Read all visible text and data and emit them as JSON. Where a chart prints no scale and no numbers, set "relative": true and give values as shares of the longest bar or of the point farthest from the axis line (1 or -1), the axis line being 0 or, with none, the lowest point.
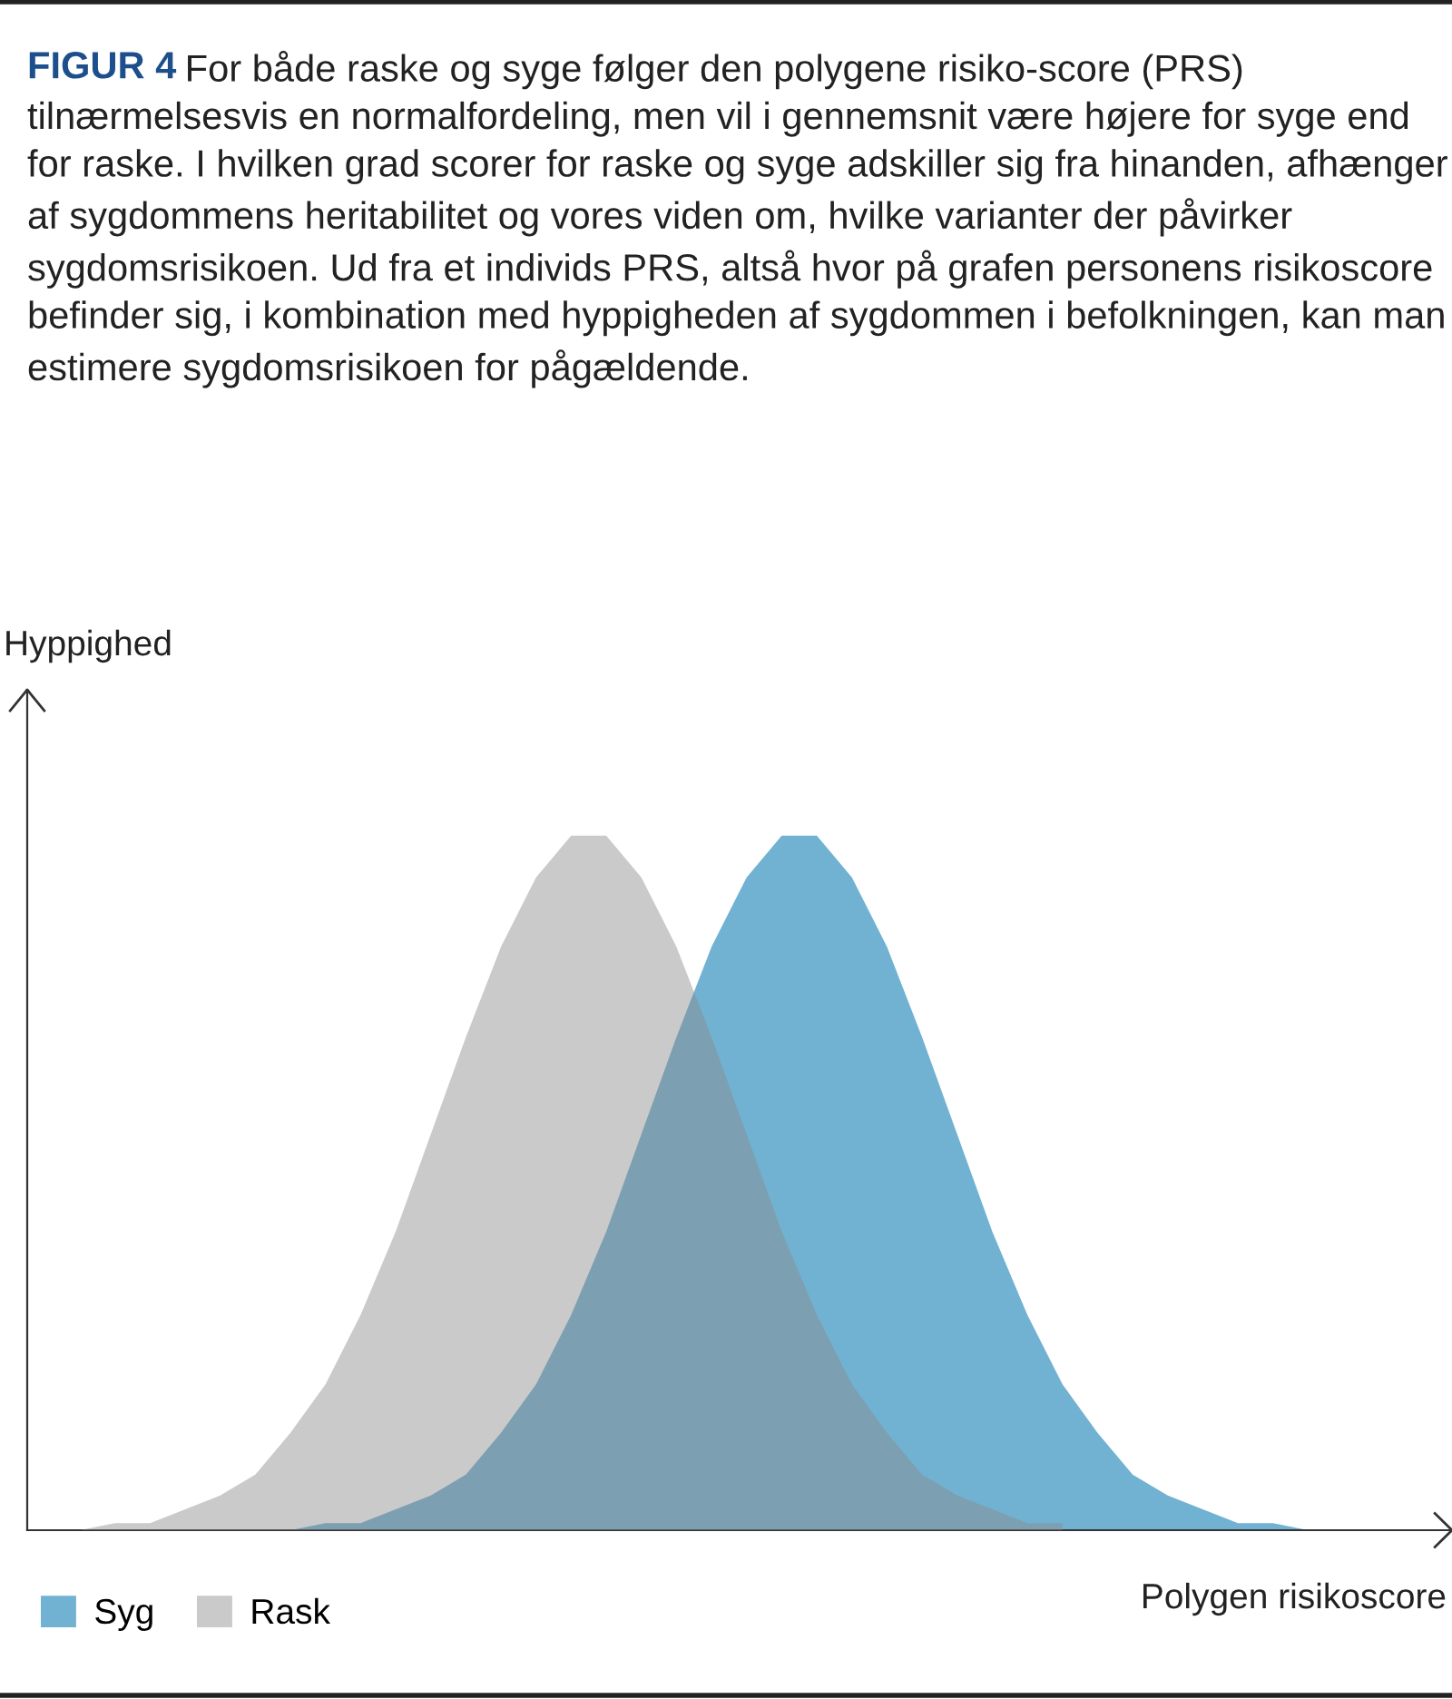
{
  "chart_data": {
    "type": "area",
    "relative": true,
    "title": "FIGUR 4",
    "subtitle": "For både raske og syge følger den polygene risiko-score (PRS) tilnærmelsesvis en normalfordeling, men vil i gennemsnit være højere for syge end for raske. I hvilken grad scorer for raske og syge adskiller sig fra hinanden, afhænger af sygdommens heritabilitet og vores viden om, hvilke varianter der påvirker sygdomsrisikoen. Ud fra et individs PRS, altså hvor på grafen personens risikoscore befinder sig, i kombination med hyppigheden af sygdommen i befolkningen, kan man estimere sygdomsrisikoen for pågældende.",
    "xlabel": "Polygen risikoscore",
    "ylabel": "Hyppighed",
    "categories": [
      null,
      null,
      null,
      null,
      null,
      null,
      null,
      null,
      null,
      null,
      null,
      null,
      null,
      null,
      null,
      null,
      null,
      null,
      null,
      null,
      null,
      null,
      null,
      null,
      null,
      null,
      null,
      null,
      null,
      null,
      null,
      null,
      null,
      null,
      null,
      null,
      null,
      null,
      null,
      null
    ],
    "series": [
      {
        "name": "Rask",
        "color": "#cacaca",
        "values": [
          0,
          0,
          0.01,
          0.01,
          0.03,
          0.05,
          0.08,
          0.14,
          0.21,
          0.31,
          0.43,
          0.57,
          0.71,
          0.84,
          0.94,
          1,
          1,
          0.94,
          0.84,
          0.71,
          0.57,
          0.43,
          0.31,
          0.21,
          0.14,
          0.08,
          0.05,
          0.03,
          0.01,
          0.01,
          null,
          null,
          null,
          null,
          null,
          null,
          null,
          null,
          null,
          null
        ]
      },
      {
        "name": "Syg",
        "color": "#71b2d2",
        "values": [
          null,
          null,
          null,
          null,
          null,
          null,
          null,
          0,
          0.01,
          0.01,
          0.03,
          0.05,
          0.08,
          0.14,
          0.21,
          0.31,
          0.43,
          0.57,
          0.71,
          0.84,
          0.94,
          1,
          1,
          0.94,
          0.84,
          0.71,
          0.57,
          0.43,
          0.31,
          0.21,
          0.14,
          0.08,
          0.05,
          0.03,
          0.01,
          0.01,
          0,
          0,
          0,
          0
        ]
      }
    ],
    "legend": "bottom left"
  }
}
